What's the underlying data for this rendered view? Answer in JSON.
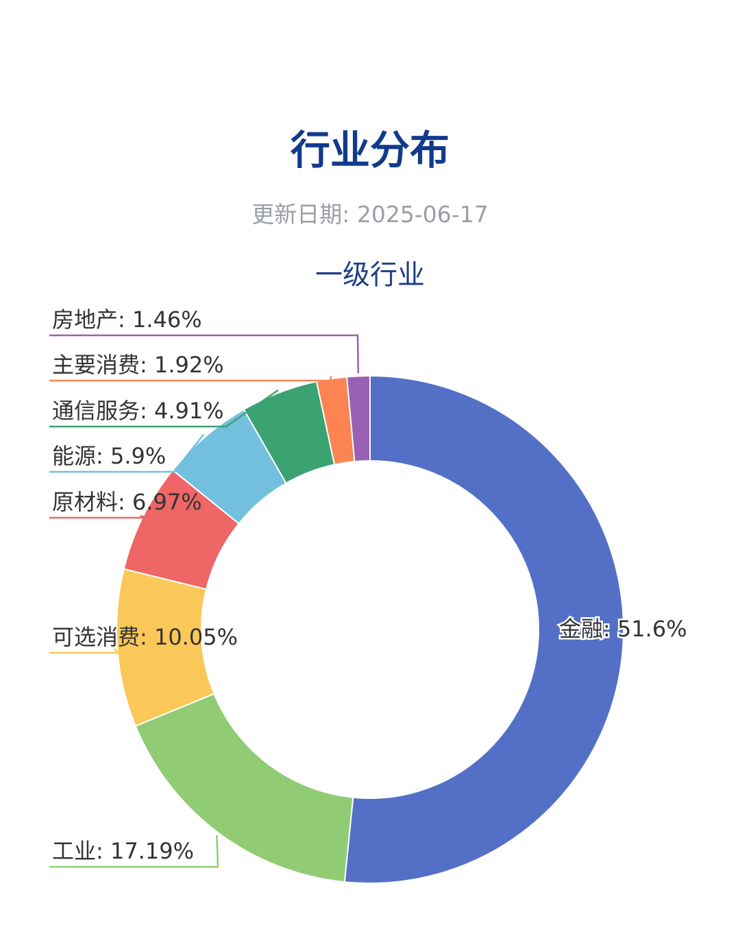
{
  "page": {
    "title": "行业分布",
    "update_label": "更新日期:",
    "update_date": "2025-06-17"
  },
  "chart_data": {
    "type": "pie",
    "variant": "donut",
    "title": "一级行业",
    "label_format": "name: value%",
    "slices": [
      {
        "name": "金融",
        "value": 51.6,
        "color": "#5470c6"
      },
      {
        "name": "工业",
        "value": 17.19,
        "color": "#91cc75"
      },
      {
        "name": "可选消费",
        "value": 10.05,
        "color": "#fac858"
      },
      {
        "name": "原材料",
        "value": 6.97,
        "color": "#ee6666"
      },
      {
        "name": "能源",
        "value": 5.9,
        "color": "#73c0de"
      },
      {
        "name": "通信服务",
        "value": 4.91,
        "color": "#3ba272"
      },
      {
        "name": "主要消费",
        "value": 1.92,
        "color": "#fc8452"
      },
      {
        "name": "房地产",
        "value": 1.46,
        "color": "#9a60b4"
      }
    ]
  }
}
